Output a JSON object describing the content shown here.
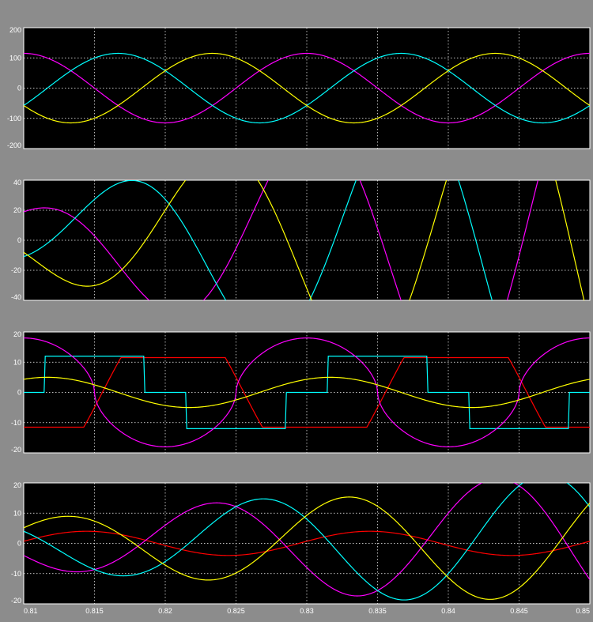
{
  "chart_data": [
    {
      "type": "line",
      "ylim": [
        -200,
        200
      ],
      "yticks": [
        200,
        100,
        0,
        -100,
        -200
      ],
      "grid": true,
      "series": [
        {
          "color": "#ff00ff",
          "kind": "sine",
          "amplitude": 115,
          "amp_growth": 0,
          "phase_deg": 90
        },
        {
          "color": "#00ffff",
          "kind": "sine",
          "amplitude": 115,
          "amp_growth": 0,
          "phase_deg": -30
        },
        {
          "color": "#ffff00",
          "kind": "sine",
          "amplitude": 115,
          "amp_growth": 0,
          "phase_deg": 210
        }
      ]
    },
    {
      "type": "line",
      "ylim": [
        -40,
        40
      ],
      "yticks": [
        40,
        20,
        0,
        -20,
        -40
      ],
      "grid": true,
      "series": [
        {
          "color": "#ff00ff",
          "kind": "sine",
          "amplitude": 19,
          "amp_growth": 150,
          "phase_deg": 85
        },
        {
          "color": "#00ffff",
          "kind": "sine",
          "amplitude": 19,
          "amp_growth": 150,
          "phase_deg": -35
        },
        {
          "color": "#ffff00",
          "kind": "sine",
          "amplitude": 19,
          "amp_growth": 150,
          "phase_deg": 205
        }
      ]
    },
    {
      "type": "line",
      "ylim": [
        -20,
        20
      ],
      "yticks": [
        20,
        10,
        0,
        -10,
        -20
      ],
      "grid": true,
      "series": [
        {
          "color": "#ff0000",
          "kind": "trapezoid",
          "amplitude": 11.5,
          "phase_deg": -100
        },
        {
          "color": "#00ffff",
          "kind": "step",
          "amplitude": 12,
          "phase_deg": 0
        },
        {
          "color": "#ff00ff",
          "kind": "rounded",
          "amplitude": 18,
          "phase_deg": 90
        },
        {
          "color": "#ffff00",
          "kind": "sine",
          "amplitude": 5,
          "phase_deg": 60
        }
      ]
    },
    {
      "type": "line",
      "xlim": [
        0.81,
        0.85
      ],
      "xticks": [
        "0.81",
        "0.815",
        "0.82",
        "0.825",
        "0.83",
        "0.835",
        "0.84",
        "0.845",
        "0.85"
      ],
      "ylim": [
        -20,
        20
      ],
      "yticks": [
        20,
        10,
        0,
        -10,
        -20
      ],
      "grid": true,
      "series": [
        {
          "color": "#ff0000",
          "kind": "sine",
          "amplitude": 4,
          "amp_growth": 0,
          "phase_deg": 10
        },
        {
          "color": "#ff00ff",
          "kind": "sine",
          "amplitude": 8,
          "amp_growth": 50,
          "phase_deg": -150
        },
        {
          "color": "#00ffff",
          "kind": "sine",
          "amplitude": 8,
          "amp_growth": 50,
          "phase_deg": 150
        },
        {
          "color": "#ffff00",
          "kind": "sine",
          "amplitude": 8,
          "amp_growth": 40,
          "phase_deg": 40
        }
      ]
    }
  ]
}
